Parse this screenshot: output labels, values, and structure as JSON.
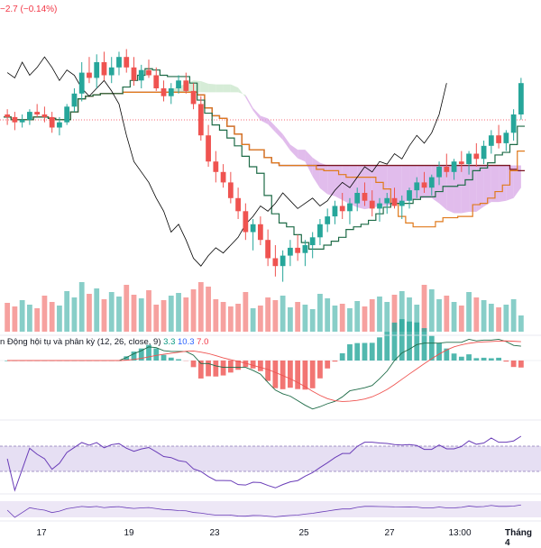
{
  "header": {
    "change_text": "−2.7 (−0.14%)"
  },
  "macd_legend": {
    "label": "n Động hội tụ và phân kỳ (12, 26, close, 9)",
    "v1": "3.3",
    "v2": "10.3",
    "v3": "7.0"
  },
  "colors": {
    "up": "#26a69a",
    "down": "#ef5350",
    "bg": "#ffffff",
    "tenkan": "#1e6b47",
    "kijun": "#e07a1c",
    "senkou_b": "#7a1420",
    "chikou": "#000000",
    "cloud_bull": "#c8e6c9",
    "cloud_bear": "#d7a6e6",
    "teal": "#0b6b5a",
    "rsi_band": "#d1c4e9",
    "rsi_line": "#6a3db8"
  },
  "chart_data": {
    "type": "candlestick",
    "title": "",
    "x_ticks": [
      {
        "label": "17",
        "bold": false
      },
      {
        "label": "19",
        "bold": false
      },
      {
        "label": "23",
        "bold": false
      },
      {
        "label": "25",
        "bold": false
      },
      {
        "label": "27",
        "bold": false
      },
      {
        "label": "13:00",
        "bold": false
      },
      {
        "label": "Tháng 4",
        "bold": true
      }
    ],
    "price_range": [
      0,
      100
    ],
    "candles": [
      [
        70,
        72,
        66,
        69
      ],
      [
        69,
        71,
        64,
        67
      ],
      [
        67,
        70,
        65,
        68
      ],
      [
        68,
        72,
        66,
        71
      ],
      [
        71,
        74,
        69,
        70
      ],
      [
        70,
        73,
        67,
        69
      ],
      [
        69,
        71,
        63,
        65
      ],
      [
        65,
        69,
        62,
        67
      ],
      [
        67,
        74,
        66,
        73
      ],
      [
        73,
        80,
        71,
        78
      ],
      [
        78,
        90,
        75,
        86
      ],
      [
        86,
        92,
        82,
        84
      ],
      [
        84,
        93,
        80,
        90
      ],
      [
        90,
        94,
        83,
        85
      ],
      [
        85,
        92,
        82,
        88
      ],
      [
        88,
        94,
        85,
        92
      ],
      [
        92,
        95,
        86,
        88
      ],
      [
        88,
        92,
        81,
        83
      ],
      [
        83,
        89,
        80,
        87
      ],
      [
        87,
        91,
        84,
        85
      ],
      [
        85,
        88,
        79,
        80
      ],
      [
        80,
        83,
        75,
        77
      ],
      [
        77,
        82,
        74,
        80
      ],
      [
        80,
        85,
        78,
        83
      ],
      [
        83,
        86,
        78,
        79
      ],
      [
        79,
        82,
        72,
        74
      ],
      [
        74,
        77,
        60,
        62
      ],
      [
        62,
        66,
        50,
        52
      ],
      [
        52,
        56,
        44,
        48
      ],
      [
        48,
        51,
        42,
        44
      ],
      [
        44,
        48,
        36,
        38
      ],
      [
        38,
        42,
        30,
        33
      ],
      [
        33,
        36,
        22,
        25
      ],
      [
        25,
        30,
        18,
        28
      ],
      [
        28,
        31,
        20,
        22
      ],
      [
        22,
        26,
        12,
        15
      ],
      [
        15,
        20,
        8,
        12
      ],
      [
        12,
        18,
        6,
        16
      ],
      [
        16,
        22,
        12,
        19
      ],
      [
        19,
        24,
        14,
        17
      ],
      [
        17,
        22,
        12,
        20
      ],
      [
        20,
        25,
        15,
        23
      ],
      [
        23,
        30,
        20,
        28
      ],
      [
        28,
        34,
        25,
        31
      ],
      [
        31,
        37,
        28,
        35
      ],
      [
        35,
        40,
        30,
        33
      ],
      [
        33,
        38,
        28,
        36
      ],
      [
        36,
        42,
        33,
        40
      ],
      [
        40,
        44,
        35,
        37
      ],
      [
        37,
        41,
        31,
        34
      ],
      [
        34,
        38,
        29,
        36
      ],
      [
        36,
        40,
        32,
        38
      ],
      [
        38,
        42,
        34,
        35
      ],
      [
        35,
        39,
        30,
        37
      ],
      [
        37,
        42,
        34,
        41
      ],
      [
        41,
        46,
        38,
        44
      ],
      [
        44,
        48,
        40,
        42
      ],
      [
        42,
        47,
        39,
        46
      ],
      [
        46,
        52,
        43,
        50
      ],
      [
        50,
        55,
        46,
        48
      ],
      [
        48,
        53,
        45,
        52
      ],
      [
        52,
        56,
        48,
        51
      ],
      [
        51,
        56,
        47,
        55
      ],
      [
        55,
        59,
        50,
        53
      ],
      [
        53,
        60,
        51,
        58
      ],
      [
        58,
        64,
        55,
        62
      ],
      [
        62,
        66,
        57,
        59
      ],
      [
        59,
        64,
        56,
        63
      ],
      [
        63,
        72,
        60,
        70
      ],
      [
        70,
        84,
        68,
        82
      ]
    ],
    "volume": [
      32,
      28,
      35,
      30,
      26,
      40,
      33,
      29,
      45,
      38,
      55,
      42,
      48,
      36,
      44,
      39,
      52,
      41,
      37,
      46,
      30,
      35,
      40,
      43,
      38,
      47,
      55,
      50,
      36,
      33,
      28,
      31,
      44,
      26,
      29,
      38,
      35,
      40,
      27,
      33,
      30,
      25,
      42,
      37,
      29,
      31,
      26,
      34,
      28,
      36,
      39,
      33,
      41,
      45,
      38,
      30,
      52,
      47,
      36,
      40,
      33,
      29,
      44,
      38,
      35,
      31,
      27,
      30,
      36,
      18
    ],
    "macd": {
      "legend": "(12, 26, close, 9)",
      "values": [
        3.3,
        10.3,
        7.0
      ]
    },
    "rsi_band": [
      30,
      70
    ]
  }
}
